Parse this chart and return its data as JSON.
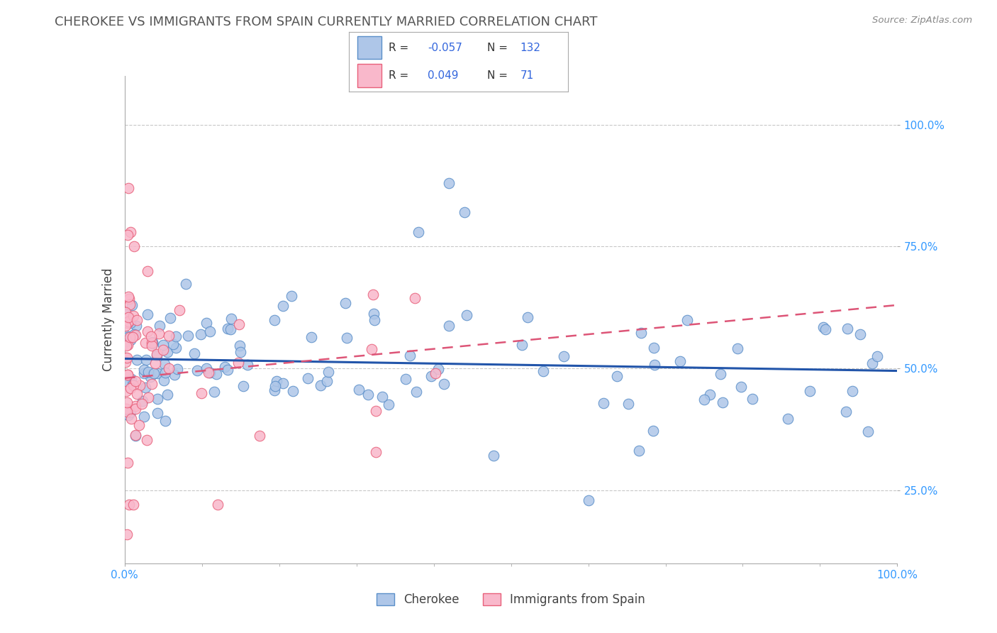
{
  "title": "CHEROKEE VS IMMIGRANTS FROM SPAIN CURRENTLY MARRIED CORRELATION CHART",
  "source_text": "Source: ZipAtlas.com",
  "ylabel": "Currently Married",
  "xlim": [
    0.0,
    1.0
  ],
  "ylim": [
    0.1,
    1.1
  ],
  "cherokee_color": "#aec6e8",
  "spain_color": "#f9b8cb",
  "cherokee_edge_color": "#5b8fc9",
  "spain_edge_color": "#e8607a",
  "cherokee_line_color": "#2255aa",
  "spain_line_color": "#dd5577",
  "background_color": "#ffffff",
  "grid_color": "#c8c8c8",
  "title_color": "#555555",
  "axis_label_color": "#444444",
  "tick_label_color": "#3399ff",
  "legend_text_color": "#333333",
  "legend_value_color": "#3366dd",
  "r_cherokee": -0.057,
  "n_cherokee": 132,
  "r_spain": 0.049,
  "n_spain": 71,
  "seed": 12345
}
